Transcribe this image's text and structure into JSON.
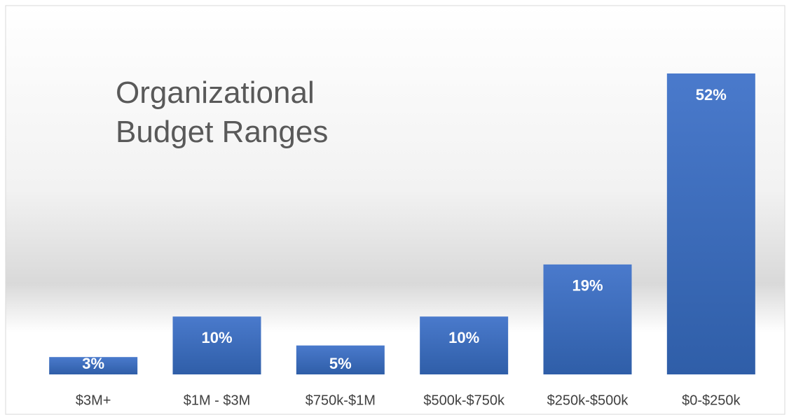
{
  "chart_data": {
    "type": "bar",
    "title": "Organizational Budget Ranges",
    "categories": [
      "$3M+",
      "$1M - $3M",
      "$750k-$1M",
      "$500k-$750k",
      "$250k-$500k",
      "$0-$250k"
    ],
    "values": [
      3,
      10,
      5,
      10,
      19,
      52
    ],
    "value_labels": [
      "3%",
      "10%",
      "5%",
      "10%",
      "19%",
      "52%"
    ],
    "color": "#4472c4"
  }
}
